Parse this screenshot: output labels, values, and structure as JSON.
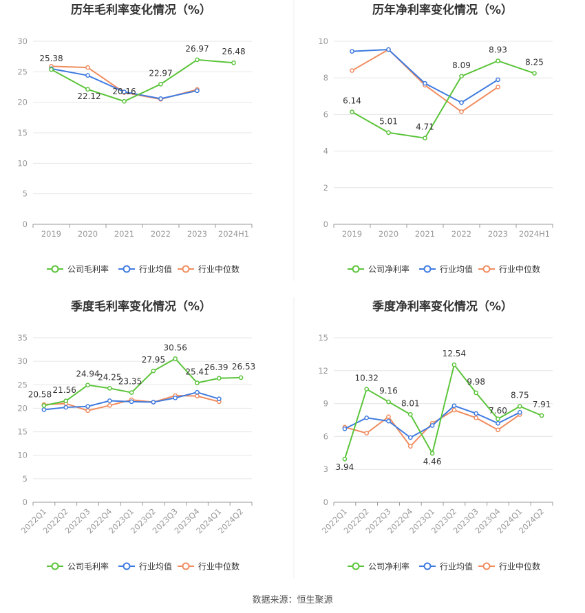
{
  "colors": {
    "company": "#5bc43a",
    "industry_avg": "#3f7be0",
    "industry_median": "#f08c5e",
    "grid": "#e6e6e6",
    "axis": "#999999",
    "divider": "#eeeeee"
  },
  "legend": {
    "gross_company": "公司毛利率",
    "net_company": "公司净利率",
    "avg": "行业均值",
    "median": "行业中位数"
  },
  "source": "数据来源：恒生聚源",
  "chart_data": [
    {
      "type": "line",
      "title": "历年毛利率变化情况（%）",
      "categories": [
        "2019",
        "2020",
        "2021",
        "2022",
        "2023",
        "2024H1"
      ],
      "ylim": [
        0,
        30
      ],
      "yticks": [
        0,
        5,
        10,
        15,
        20,
        25,
        30
      ],
      "grid": true,
      "legend_position": "bottom",
      "series": [
        {
          "name": "公司毛利率",
          "values": [
            25.38,
            22.12,
            20.16,
            22.97,
            26.97,
            26.48
          ]
        },
        {
          "name": "行业均值",
          "values": [
            25.5,
            24.4,
            21.7,
            20.6,
            21.9,
            null
          ]
        },
        {
          "name": "行业中位数",
          "values": [
            25.9,
            25.7,
            21.6,
            20.5,
            22.1,
            null
          ]
        }
      ],
      "data_labels": [
        "25.38",
        "22.12",
        "20.16",
        "22.97",
        "26.97",
        "26.48"
      ]
    },
    {
      "type": "line",
      "title": "历年净利率变化情况（%）",
      "categories": [
        "2019",
        "2020",
        "2021",
        "2022",
        "2023",
        "2024H1"
      ],
      "ylim": [
        0,
        10
      ],
      "yticks": [
        0,
        2,
        4,
        6,
        8,
        10
      ],
      "grid": true,
      "legend_position": "bottom",
      "series": [
        {
          "name": "公司净利率",
          "values": [
            6.14,
            5.01,
            4.71,
            8.09,
            8.93,
            8.25
          ]
        },
        {
          "name": "行业均值",
          "values": [
            9.45,
            9.55,
            7.7,
            6.65,
            7.9,
            null
          ]
        },
        {
          "name": "行业中位数",
          "values": [
            8.4,
            9.55,
            7.6,
            6.15,
            7.5,
            null
          ]
        }
      ],
      "data_labels": [
        "6.14",
        "5.01",
        "4.71",
        "8.09",
        "8.93",
        "8.25"
      ]
    },
    {
      "type": "line",
      "title": "季度毛利率变化情况（%）",
      "categories": [
        "2022Q1",
        "2022Q2",
        "2022Q3",
        "2022Q4",
        "2023Q1",
        "2023Q2",
        "2023Q3",
        "2023Q4",
        "2024Q1",
        "2024Q2"
      ],
      "ylim": [
        0,
        35
      ],
      "yticks": [
        0,
        5,
        10,
        15,
        20,
        25,
        30,
        35
      ],
      "grid": true,
      "legend_position": "bottom",
      "series": [
        {
          "name": "公司毛利率",
          "values": [
            20.58,
            21.56,
            24.94,
            24.25,
            23.35,
            27.95,
            30.56,
            25.41,
            26.39,
            26.53
          ]
        },
        {
          "name": "行业均值",
          "values": [
            19.7,
            20.2,
            20.4,
            21.6,
            21.4,
            21.3,
            22.2,
            23.4,
            22.0,
            null
          ]
        },
        {
          "name": "行业中位数",
          "values": [
            20.8,
            21.0,
            19.5,
            20.6,
            21.8,
            21.3,
            22.7,
            22.6,
            21.4,
            null
          ]
        }
      ],
      "data_labels": [
        "20.58",
        "21.56",
        "24.94",
        "24.25",
        "23.35",
        "27.95",
        "30.56",
        "25.41",
        "26.39",
        "26.53"
      ]
    },
    {
      "type": "line",
      "title": "季度净利率变化情况（%）",
      "categories": [
        "2022Q1",
        "2022Q2",
        "2022Q3",
        "2022Q4",
        "2023Q1",
        "2023Q2",
        "2023Q3",
        "2023Q4",
        "2024Q1",
        "2024Q2"
      ],
      "ylim": [
        0,
        15
      ],
      "yticks": [
        0,
        3,
        6,
        9,
        12,
        15
      ],
      "grid": true,
      "legend_position": "bottom",
      "series": [
        {
          "name": "公司净利率",
          "values": [
            3.94,
            10.32,
            9.16,
            8.01,
            4.46,
            12.54,
            9.98,
            7.6,
            8.75,
            7.91
          ]
        },
        {
          "name": "行业均值",
          "values": [
            6.7,
            7.7,
            7.4,
            5.9,
            7.0,
            8.8,
            8.1,
            7.2,
            8.2,
            null
          ]
        },
        {
          "name": "行业中位数",
          "values": [
            6.85,
            6.3,
            7.8,
            5.1,
            7.2,
            8.4,
            7.7,
            6.6,
            8.0,
            null
          ]
        }
      ],
      "data_labels": [
        "3.94",
        "10.32",
        "9.16",
        "8.01",
        "4.46",
        "12.54",
        "9.98",
        "7.60",
        "8.75",
        "7.91"
      ]
    }
  ]
}
